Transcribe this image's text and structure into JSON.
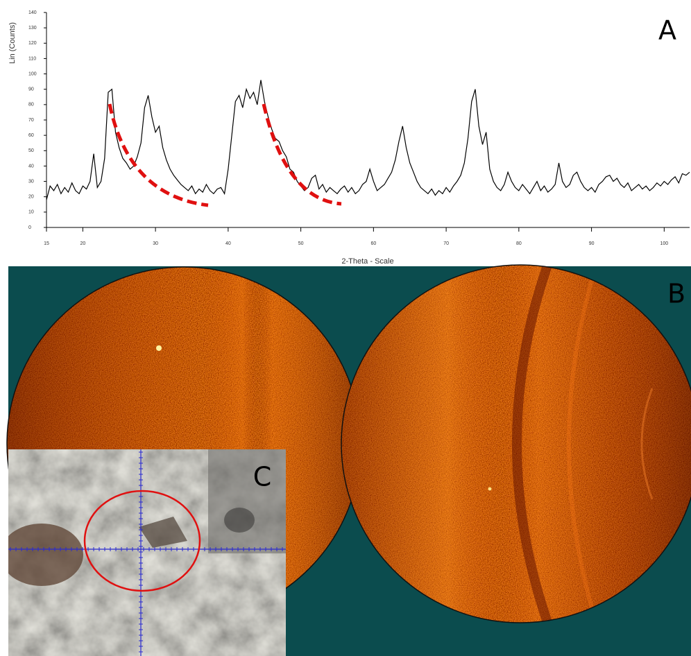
{
  "chart_data": {
    "type": "line",
    "x_label": "2-Theta - Scale",
    "y_label": "Lin (Counts)",
    "x": [
      15,
      15.5,
      16,
      16.5,
      17,
      17.5,
      18,
      18.5,
      19,
      19.5,
      20,
      20.5,
      21,
      21.5,
      22,
      22.5,
      23,
      23.5,
      24,
      24.5,
      25,
      25.5,
      26,
      26.5,
      27,
      27.5,
      28,
      28.5,
      29,
      29.5,
      30,
      30.5,
      31,
      31.5,
      32,
      32.5,
      33,
      33.5,
      34,
      34.5,
      35,
      35.5,
      36,
      36.5,
      37,
      37.5,
      38,
      38.5,
      39,
      39.5,
      40,
      40.5,
      41,
      41.5,
      42,
      42.5,
      43,
      43.5,
      44,
      44.5,
      45,
      45.5,
      46,
      46.5,
      47,
      47.5,
      48,
      48.5,
      49,
      49.5,
      50,
      50.5,
      51,
      51.5,
      52,
      52.5,
      53,
      53.5,
      54,
      54.5,
      55,
      55.5,
      56,
      56.5,
      57,
      57.5,
      58,
      58.5,
      59,
      59.5,
      60,
      60.5,
      61,
      61.5,
      62,
      62.5,
      63,
      63.5,
      64,
      64.5,
      65,
      65.5,
      66,
      66.5,
      67,
      67.5,
      68,
      68.5,
      69,
      69.5,
      70,
      70.5,
      71,
      71.5,
      72,
      72.5,
      73,
      73.5,
      74,
      74.5,
      75,
      75.5,
      76,
      76.5,
      77,
      77.5,
      78,
      78.5,
      79,
      79.5,
      80,
      80.5,
      81,
      81.5,
      82,
      82.5,
      83,
      83.5,
      84,
      84.5,
      85,
      85.5,
      86,
      86.5,
      87,
      87.5,
      88,
      88.5,
      89,
      89.5,
      90,
      90.5,
      91,
      91.5,
      92,
      92.5,
      93,
      93.5,
      94,
      94.5,
      95,
      95.5,
      96,
      96.5,
      97,
      97.5,
      98,
      98.5,
      99,
      99.5,
      100,
      100.5,
      101,
      101.5,
      102,
      102.5,
      103,
      103.5
    ],
    "values": [
      18,
      27,
      24,
      28,
      22,
      26,
      23,
      29,
      24,
      22,
      27,
      25,
      30,
      48,
      26,
      30,
      45,
      88,
      90,
      62,
      52,
      45,
      42,
      38,
      40,
      46,
      55,
      78,
      86,
      72,
      62,
      66,
      52,
      44,
      38,
      34,
      31,
      28,
      26,
      24,
      27,
      22,
      25,
      23,
      28,
      24,
      22,
      25,
      26,
      22,
      38,
      60,
      82,
      86,
      78,
      90,
      84,
      88,
      80,
      96,
      82,
      72,
      64,
      58,
      56,
      50,
      46,
      38,
      36,
      30,
      27,
      24,
      26,
      32,
      34,
      25,
      28,
      23,
      26,
      24,
      22,
      25,
      27,
      23,
      26,
      22,
      24,
      28,
      30,
      38,
      30,
      24,
      26,
      28,
      32,
      36,
      44,
      56,
      66,
      52,
      42,
      36,
      30,
      26,
      24,
      22,
      25,
      21,
      24,
      22,
      26,
      23,
      27,
      30,
      34,
      42,
      58,
      82,
      90,
      66,
      54,
      62,
      38,
      30,
      26,
      24,
      28,
      36,
      30,
      26,
      24,
      28,
      25,
      22,
      26,
      30,
      24,
      27,
      23,
      25,
      28,
      42,
      30,
      26,
      28,
      34,
      36,
      30,
      26,
      24,
      26,
      23,
      28,
      30,
      33,
      34,
      30,
      32,
      28,
      26,
      29,
      24,
      26,
      28,
      25,
      27,
      24,
      26,
      29,
      27,
      30,
      28,
      31,
      33,
      29,
      35,
      34,
      36
    ],
    "color": "#000000",
    "xlim": [
      15,
      103.5
    ],
    "xticks": [
      15,
      20,
      30,
      40,
      50,
      60,
      70,
      80,
      90,
      100
    ],
    "ylim": [
      0,
      140
    ],
    "yticks": [
      0,
      10,
      20,
      30,
      40,
      50,
      60,
      70,
      80,
      90,
      100,
      110,
      120,
      130,
      140
    ]
  },
  "panel_labels": [
    "A",
    "B",
    "C"
  ]
}
